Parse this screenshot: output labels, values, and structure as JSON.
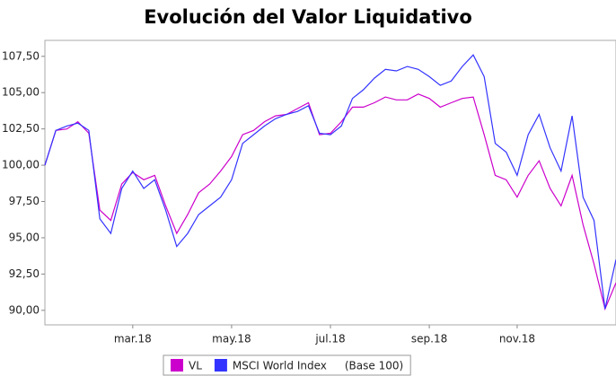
{
  "chart_data": {
    "type": "line",
    "title": "Evolución del Valor Liquidativo",
    "categories": [
      null,
      null,
      null,
      null,
      null,
      null,
      null,
      null,
      "mar.18",
      null,
      null,
      null,
      null,
      null,
      null,
      null,
      null,
      "may.18",
      null,
      null,
      null,
      null,
      null,
      null,
      null,
      null,
      "jul.18",
      null,
      null,
      null,
      null,
      null,
      null,
      null,
      null,
      "sep.18",
      null,
      null,
      null,
      null,
      null,
      null,
      null,
      "nov.18",
      null,
      null,
      null,
      null,
      null,
      null,
      null,
      null,
      null
    ],
    "series": [
      {
        "name": "VL",
        "color": "#cc00cc",
        "values": [
          100.0,
          102.4,
          102.5,
          103.0,
          102.2,
          96.9,
          96.2,
          98.7,
          99.5,
          99.0,
          99.3,
          97.2,
          95.3,
          96.6,
          98.1,
          98.7,
          99.6,
          100.6,
          102.1,
          102.4,
          103.0,
          103.4,
          103.5,
          103.9,
          104.3,
          102.1,
          102.2,
          103.0,
          104.0,
          104.0,
          104.3,
          104.7,
          104.5,
          104.5,
          104.9,
          104.6,
          104.0,
          104.3,
          104.6,
          104.7,
          102.1,
          99.3,
          99.0,
          97.8,
          99.3,
          100.3,
          98.4,
          97.2,
          99.3,
          95.9,
          93.2,
          90.1,
          91.9
        ]
      },
      {
        "name": "MSCI World Index",
        "color": "#3333ff",
        "values": [
          100.0,
          102.4,
          102.7,
          102.9,
          102.4,
          96.3,
          95.3,
          98.4,
          99.6,
          98.4,
          99.0,
          96.9,
          94.4,
          95.3,
          96.6,
          97.2,
          97.8,
          99.0,
          101.5,
          102.1,
          102.7,
          103.2,
          103.5,
          103.7,
          104.1,
          102.2,
          102.1,
          102.7,
          104.6,
          105.2,
          106.0,
          106.6,
          106.5,
          106.8,
          106.6,
          106.1,
          105.5,
          105.8,
          106.8,
          107.6,
          106.1,
          101.5,
          100.9,
          99.3,
          102.1,
          103.5,
          101.2,
          99.6,
          103.4,
          97.8,
          96.2,
          90.1,
          93.5
        ]
      }
    ],
    "legend_suffix": "(Base 100)",
    "ylim": [
      89.0,
      108.6
    ],
    "yticks": [
      {
        "value": 90,
        "label": "90,00"
      },
      {
        "value": 92.5,
        "label": "92,50"
      },
      {
        "value": 95,
        "label": "95,00"
      },
      {
        "value": 97.5,
        "label": "97,50"
      },
      {
        "value": 100,
        "label": "100,00"
      },
      {
        "value": 102.5,
        "label": "102,50"
      },
      {
        "value": 105,
        "label": "105,00"
      },
      {
        "value": 107.5,
        "label": "107,50"
      }
    ],
    "grid": false,
    "legend": "bottom"
  }
}
